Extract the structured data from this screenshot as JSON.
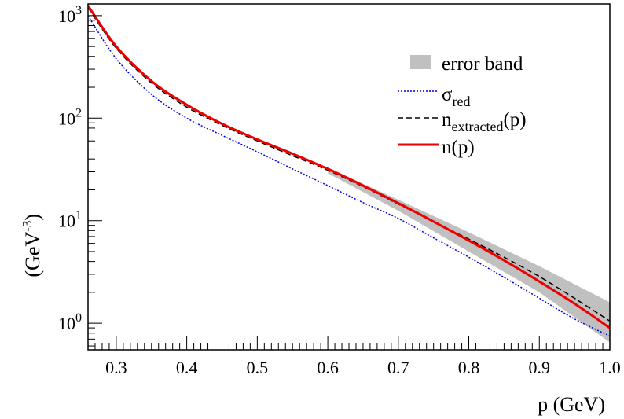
{
  "chart_data": {
    "type": "line",
    "title": "",
    "xlabel": "p (GeV)",
    "ylabel": "(GeV",
    "ylabel_sup": "-3",
    "ylabel_close": ")",
    "xlim": [
      0.26,
      1.0
    ],
    "ylim": [
      0.55,
      1300
    ],
    "yscale": "log",
    "grid": false,
    "legend_position": "top-right",
    "x_ticks": [
      {
        "value": 0.3,
        "label": "0.3"
      },
      {
        "value": 0.4,
        "label": "0.4"
      },
      {
        "value": 0.5,
        "label": "0.5"
      },
      {
        "value": 0.6,
        "label": "0.6"
      },
      {
        "value": 0.7,
        "label": "0.7"
      },
      {
        "value": 0.8,
        "label": "0.8"
      },
      {
        "value": 0.9,
        "label": "0.9"
      },
      {
        "value": 1.0,
        "label": "1.0"
      }
    ],
    "y_ticks": [
      {
        "value": 1,
        "base": "10",
        "exp": "0"
      },
      {
        "value": 10,
        "base": "10",
        "exp": "1"
      },
      {
        "value": 100,
        "base": "10",
        "exp": "2"
      },
      {
        "value": 1000,
        "base": "10",
        "exp": "3"
      }
    ],
    "error_band": {
      "legend": "error band",
      "color": "#c0c0c0",
      "x": [
        0.6,
        0.7,
        0.8,
        0.9,
        1.0
      ],
      "upper": [
        33,
        16,
        7.7,
        3.6,
        1.6
      ],
      "lower": [
        29,
        12.5,
        5.0,
        2.0,
        0.65
      ]
    },
    "series": [
      {
        "legend": "σ",
        "legend_sub": "red",
        "color": "#0000dd",
        "style": "dotted",
        "x": [
          0.26,
          0.3,
          0.35,
          0.4,
          0.45,
          0.5,
          0.55,
          0.6,
          0.65,
          0.7,
          0.75,
          0.8,
          0.85,
          0.9,
          0.95,
          1.0
        ],
        "y": [
          1000,
          380,
          170,
          100,
          68,
          47,
          32,
          22,
          15,
          10.5,
          6.8,
          4.4,
          2.8,
          1.75,
          1.1,
          0.75
        ]
      },
      {
        "legend": "n",
        "legend_sub": "extracted",
        "legend_suffix": "(p)",
        "color": "#000000",
        "style": "dashed",
        "x": [
          0.26,
          0.3,
          0.35,
          0.4,
          0.45,
          0.5,
          0.55,
          0.6,
          0.65,
          0.7,
          0.75,
          0.8,
          0.85,
          0.9,
          0.95,
          1.0
        ],
        "y": [
          1200,
          480,
          220,
          128,
          85,
          60,
          43,
          31,
          21.5,
          14.5,
          9.8,
          6.6,
          4.4,
          2.85,
          1.75,
          1.05
        ]
      },
      {
        "legend": "n(p)",
        "color": "#ee0000",
        "style": "solid",
        "x": [
          0.26,
          0.3,
          0.35,
          0.4,
          0.45,
          0.5,
          0.55,
          0.6,
          0.65,
          0.7,
          0.75,
          0.8,
          0.85,
          0.9,
          0.95,
          1.0
        ],
        "y": [
          1250,
          500,
          230,
          135,
          88,
          62,
          45,
          32,
          22,
          14.8,
          9.8,
          6.4,
          4.1,
          2.55,
          1.55,
          0.9
        ]
      }
    ]
  }
}
